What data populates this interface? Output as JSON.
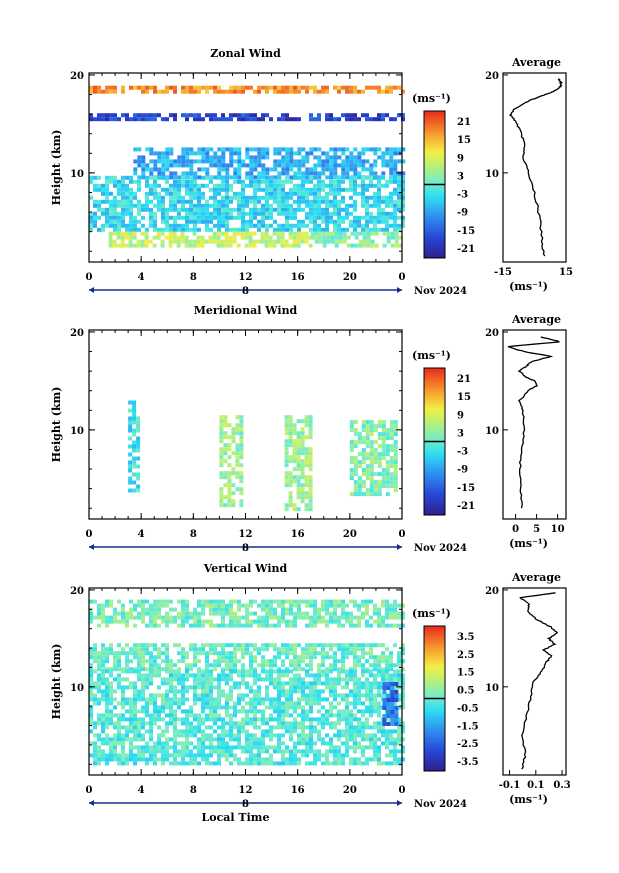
{
  "chart_data": [
    {
      "type": "heatmap",
      "title": "Zonal Wind",
      "ylabel": "Height (km)",
      "yticks": [
        "20",
        "10"
      ],
      "xticks": [
        "0",
        "4",
        "8",
        "12",
        "16",
        "20",
        "0"
      ],
      "date_label": "8",
      "month_label": "Nov 2024",
      "colorbar": {
        "unit": "(ms⁻¹)",
        "ticks": [
          "21",
          "15",
          "9",
          "3",
          "-3",
          "-9",
          "-15",
          "-21"
        ]
      },
      "average": {
        "title": "Average",
        "yticks": [
          "20",
          "10"
        ],
        "xticks": [
          "-15",
          "15"
        ],
        "xlabel": "(ms⁻¹)"
      },
      "cells": [
        {
          "t0": 0,
          "t1": 24,
          "h0": 18.4,
          "h1": 18.9,
          "v": 17
        },
        {
          "t0": 0,
          "t1": 24,
          "h0": 15.6,
          "h1": 16.1,
          "v": -18
        },
        {
          "t0": 3.4,
          "t1": 24,
          "h0": 9.7,
          "h1": 12.6,
          "v": -8
        },
        {
          "t0": 0,
          "t1": 24,
          "h0": 4.0,
          "h1": 9.7,
          "v": -4
        },
        {
          "t0": 1.5,
          "t1": 17,
          "h0": 2.4,
          "h1": 4.0,
          "v": 7
        },
        {
          "t0": 17,
          "t1": 24,
          "h0": 2.4,
          "h1": 4.0,
          "v": 3
        }
      ],
      "profile": {
        "height": [
          1.5,
          3,
          5,
          7,
          9,
          10.5,
          11.5,
          12.5,
          13.5,
          14.5,
          15.3,
          15.9,
          16.5,
          17.2,
          17.8,
          18.2,
          18.5,
          18.8,
          19.2,
          19.6
        ],
        "value": [
          4.6,
          3.7,
          2.7,
          1.1,
          -1.5,
          -3.7,
          -5.2,
          -4.7,
          -5.5,
          -7.1,
          -9.2,
          -11.5,
          -9.5,
          -4.5,
          2.8,
          7.5,
          10.5,
          12.5,
          12.8,
          11.2
        ]
      }
    },
    {
      "type": "heatmap",
      "title": "Meridional Wind",
      "ylabel": "Height (km)",
      "yticks": [
        "20",
        "10"
      ],
      "xticks": [
        "0",
        "4",
        "8",
        "12",
        "16",
        "20",
        "0"
      ],
      "date_label": "8",
      "month_label": "Nov 2024",
      "colorbar": {
        "unit": "(ms⁻¹)",
        "ticks": [
          "21",
          "15",
          "9",
          "3",
          "-3",
          "-9",
          "-15",
          "-21"
        ]
      },
      "average": {
        "title": "Average",
        "yticks": [
          "20",
          "10"
        ],
        "xticks": [
          "0",
          "5",
          "10"
        ],
        "xlabel": "(ms⁻¹)"
      },
      "cells": [
        {
          "t0": 3.0,
          "t1": 3.8,
          "h0": 4.0,
          "h1": 13.0,
          "v": -3
        },
        {
          "t0": 10.0,
          "t1": 11.8,
          "h0": 2.2,
          "h1": 11.5,
          "v": 4
        },
        {
          "t0": 15.0,
          "t1": 17.0,
          "h0": 2.0,
          "h1": 11.5,
          "v": 4
        },
        {
          "t0": 20.0,
          "t1": 23.5,
          "h0": 3.5,
          "h1": 11.0,
          "v": 2
        }
      ],
      "profile": {
        "height": [
          2,
          4,
          6,
          8,
          10,
          12,
          13,
          14,
          14.5,
          15,
          15.5,
          16,
          16.5,
          17,
          17.5,
          18,
          18.5,
          19,
          19.5
        ],
        "value": [
          1.5,
          1.2,
          1.0,
          1.5,
          2.0,
          1.8,
          1.0,
          3.0,
          5.0,
          4.5,
          2.0,
          1.0,
          2.5,
          4.0,
          8.5,
          2.0,
          -2.0,
          10.5,
          6.0
        ]
      }
    },
    {
      "type": "heatmap",
      "title": "Vertical Wind",
      "ylabel": "Height (km)",
      "yticks": [
        "20",
        "10"
      ],
      "xticks": [
        "0",
        "4",
        "8",
        "12",
        "16",
        "20",
        "0"
      ],
      "date_label": "8",
      "month_label": "Nov 2024",
      "xlabel": "Local Time",
      "colorbar": {
        "unit": "(ms⁻¹)",
        "ticks": [
          "3.5",
          "2.5",
          "1.5",
          "0.5",
          "-0.5",
          "-1.5",
          "-2.5",
          "-3.5"
        ]
      },
      "average": {
        "title": "Average",
        "yticks": [
          "20",
          "10"
        ],
        "xticks": [
          "-0.1",
          "0.1",
          "0.3"
        ],
        "xlabel": "(ms⁻¹)"
      },
      "cells": [
        {
          "t0": 0,
          "t1": 24,
          "h0": 16.5,
          "h1": 19.0,
          "v": 0.2
        },
        {
          "t0": 0,
          "t1": 24,
          "h0": 11.8,
          "h1": 14.5,
          "v": 0.1
        },
        {
          "t0": 0,
          "t1": 24,
          "h0": 2.0,
          "h1": 11.8,
          "v": -0.2
        },
        {
          "t0": 22.5,
          "t1": 23.6,
          "h0": 6.0,
          "h1": 10.5,
          "v": -2.2
        }
      ],
      "profile": {
        "height": [
          1.5,
          3,
          5,
          7,
          9,
          10.5,
          11.5,
          12.5,
          13.2,
          13.8,
          14.4,
          15,
          15.6,
          16.2,
          17,
          17.8,
          18.5,
          19.2,
          19.7
        ],
        "value": [
          0.0,
          0.02,
          0.0,
          0.03,
          0.06,
          0.08,
          0.14,
          0.18,
          0.22,
          0.16,
          0.24,
          0.2,
          0.26,
          0.21,
          0.1,
          0.04,
          0.05,
          -0.02,
          0.25
        ]
      }
    }
  ]
}
